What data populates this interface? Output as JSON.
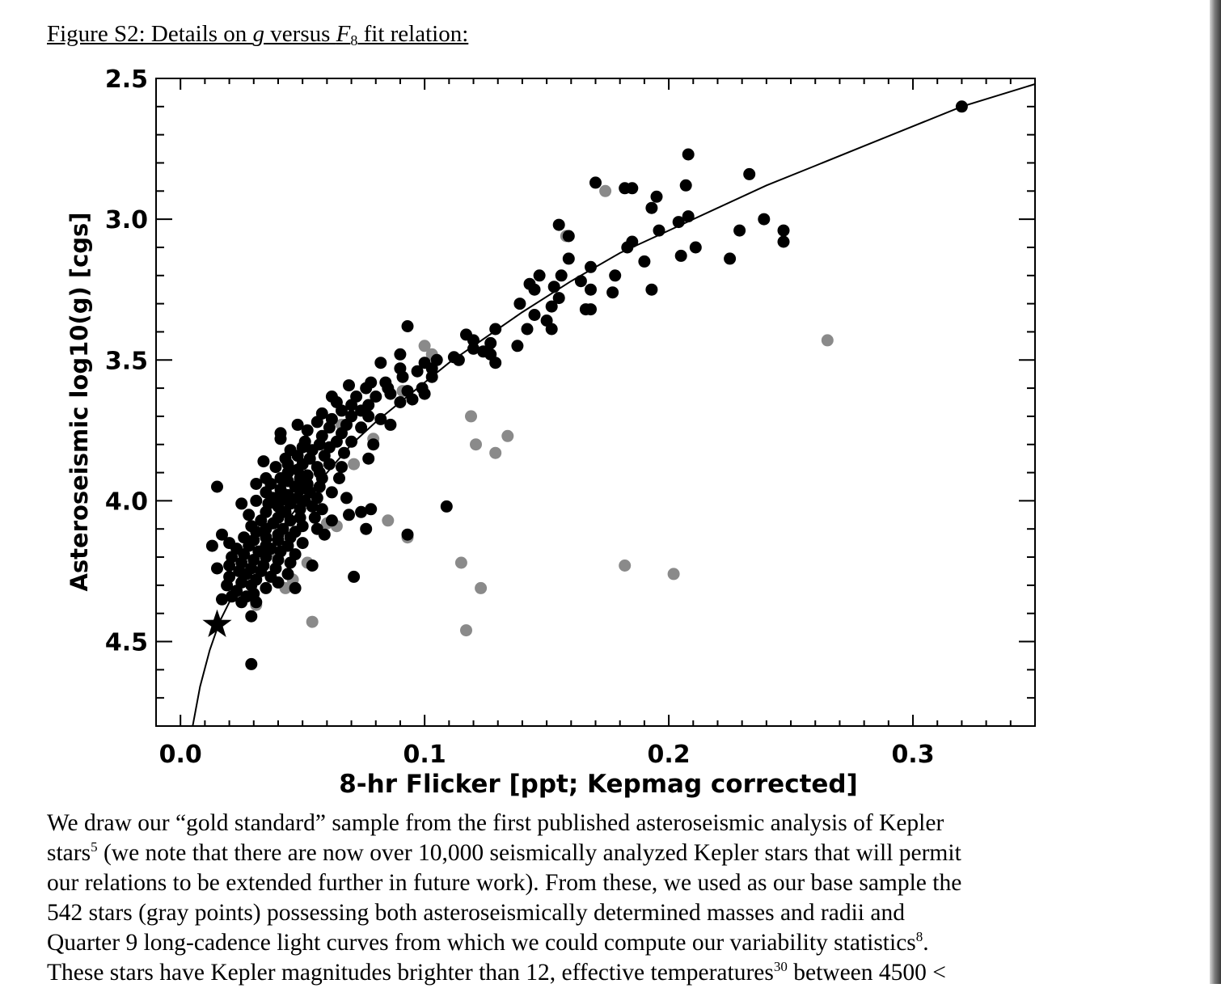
{
  "caption": {
    "prefix": "Figure S2: Details on ",
    "var_g": "g",
    "middle": " versus ",
    "var_f": "F",
    "subscript": "8",
    "suffix": " fit relation:"
  },
  "chart_data": {
    "type": "scatter",
    "xlabel": "8-hr Flicker [ppt; Kepmag corrected]",
    "ylabel": "Asteroseismic log10(g) [cgs]",
    "xlim": [
      -0.01,
      0.35
    ],
    "ylim": [
      4.8,
      2.5
    ],
    "y_inverted": true,
    "xticks": [
      "0.0",
      "0.1",
      "0.2",
      "0.3"
    ],
    "yticks": [
      "2.5",
      "3.0",
      "3.5",
      "4.0",
      "4.5"
    ],
    "grid": false,
    "point_colors": {
      "gold_sample": "#000000",
      "base_sample": "#8a8a8a",
      "fit": "#000000"
    },
    "fit_curve": [
      [
        0.005,
        4.8
      ],
      [
        0.008,
        4.66
      ],
      [
        0.012,
        4.53
      ],
      [
        0.016,
        4.43
      ],
      [
        0.02,
        4.36
      ],
      [
        0.025,
        4.29
      ],
      [
        0.03,
        4.22
      ],
      [
        0.04,
        4.11
      ],
      [
        0.05,
        4.0
      ],
      [
        0.06,
        3.9
      ],
      [
        0.07,
        3.8
      ],
      [
        0.08,
        3.72
      ],
      [
        0.09,
        3.65
      ],
      [
        0.1,
        3.58
      ],
      [
        0.11,
        3.51
      ],
      [
        0.12,
        3.45
      ],
      [
        0.13,
        3.39
      ],
      [
        0.14,
        3.33
      ],
      [
        0.16,
        3.22
      ],
      [
        0.18,
        3.12
      ],
      [
        0.2,
        3.04
      ],
      [
        0.22,
        2.96
      ],
      [
        0.24,
        2.88
      ],
      [
        0.26,
        2.81
      ],
      [
        0.28,
        2.74
      ],
      [
        0.3,
        2.67
      ],
      [
        0.32,
        2.6
      ],
      [
        0.35,
        2.52
      ]
    ],
    "sun_marker": {
      "x": 0.015,
      "y": 4.44
    },
    "series": [
      {
        "color": "#8a8a8a",
        "points": [
          [
            0.174,
            2.9
          ],
          [
            0.265,
            3.43
          ],
          [
            0.1,
            3.45
          ],
          [
            0.119,
            3.7
          ],
          [
            0.121,
            3.8
          ],
          [
            0.129,
            3.83
          ],
          [
            0.134,
            3.77
          ],
          [
            0.085,
            4.07
          ],
          [
            0.093,
            4.13
          ],
          [
            0.115,
            4.22
          ],
          [
            0.123,
            4.31
          ],
          [
            0.117,
            4.46
          ],
          [
            0.182,
            4.23
          ],
          [
            0.202,
            4.26
          ],
          [
            0.052,
            4.22
          ],
          [
            0.054,
            4.43
          ],
          [
            0.046,
            4.28
          ],
          [
            0.043,
            4.31
          ],
          [
            0.031,
            4.37
          ],
          [
            0.06,
            4.08
          ],
          [
            0.064,
            4.09
          ],
          [
            0.071,
            3.87
          ],
          [
            0.079,
            3.78
          ],
          [
            0.091,
            3.61
          ],
          [
            0.103,
            3.48
          ],
          [
            0.158,
            3.06
          ],
          [
            0.037,
            4.18
          ],
          [
            0.045,
            3.99
          ],
          [
            0.056,
            3.96
          ],
          [
            0.066,
            3.73
          ]
        ]
      },
      {
        "color": "#000000",
        "points": [
          [
            0.32,
            2.6
          ],
          [
            0.208,
            2.77
          ],
          [
            0.233,
            2.84
          ],
          [
            0.207,
            2.88
          ],
          [
            0.17,
            2.87
          ],
          [
            0.182,
            2.89
          ],
          [
            0.185,
            2.89
          ],
          [
            0.195,
            2.92
          ],
          [
            0.193,
            2.96
          ],
          [
            0.208,
            2.99
          ],
          [
            0.239,
            3.0
          ],
          [
            0.247,
            3.04
          ],
          [
            0.247,
            3.08
          ],
          [
            0.204,
            3.01
          ],
          [
            0.196,
            3.04
          ],
          [
            0.155,
            3.02
          ],
          [
            0.159,
            3.06
          ],
          [
            0.229,
            3.04
          ],
          [
            0.185,
            3.08
          ],
          [
            0.183,
            3.1
          ],
          [
            0.211,
            3.1
          ],
          [
            0.205,
            3.13
          ],
          [
            0.225,
            3.14
          ],
          [
            0.159,
            3.14
          ],
          [
            0.19,
            3.15
          ],
          [
            0.168,
            3.17
          ],
          [
            0.178,
            3.2
          ],
          [
            0.164,
            3.22
          ],
          [
            0.156,
            3.2
          ],
          [
            0.147,
            3.2
          ],
          [
            0.153,
            3.24
          ],
          [
            0.143,
            3.23
          ],
          [
            0.145,
            3.25
          ],
          [
            0.193,
            3.25
          ],
          [
            0.168,
            3.25
          ],
          [
            0.177,
            3.26
          ],
          [
            0.155,
            3.28
          ],
          [
            0.139,
            3.3
          ],
          [
            0.152,
            3.31
          ],
          [
            0.168,
            3.32
          ],
          [
            0.166,
            3.32
          ],
          [
            0.145,
            3.34
          ],
          [
            0.15,
            3.36
          ],
          [
            0.152,
            3.39
          ],
          [
            0.142,
            3.39
          ],
          [
            0.129,
            3.39
          ],
          [
            0.117,
            3.41
          ],
          [
            0.12,
            3.43
          ],
          [
            0.127,
            3.44
          ],
          [
            0.138,
            3.45
          ],
          [
            0.12,
            3.46
          ],
          [
            0.124,
            3.47
          ],
          [
            0.112,
            3.49
          ],
          [
            0.114,
            3.5
          ],
          [
            0.127,
            3.48
          ],
          [
            0.129,
            3.51
          ],
          [
            0.093,
            3.38
          ],
          [
            0.105,
            3.5
          ],
          [
            0.1,
            3.51
          ],
          [
            0.09,
            3.48
          ],
          [
            0.082,
            3.51
          ],
          [
            0.09,
            3.53
          ],
          [
            0.097,
            3.54
          ],
          [
            0.103,
            3.53
          ],
          [
            0.103,
            3.56
          ],
          [
            0.091,
            3.56
          ],
          [
            0.084,
            3.58
          ],
          [
            0.078,
            3.58
          ],
          [
            0.069,
            3.59
          ],
          [
            0.085,
            3.6
          ],
          [
            0.093,
            3.61
          ],
          [
            0.099,
            3.6
          ],
          [
            0.1,
            3.62
          ],
          [
            0.076,
            3.6
          ],
          [
            0.086,
            3.62
          ],
          [
            0.08,
            3.63
          ],
          [
            0.072,
            3.63
          ],
          [
            0.062,
            3.63
          ],
          [
            0.064,
            3.65
          ],
          [
            0.07,
            3.66
          ],
          [
            0.077,
            3.66
          ],
          [
            0.09,
            3.65
          ],
          [
            0.095,
            3.64
          ],
          [
            0.074,
            3.68
          ],
          [
            0.066,
            3.68
          ],
          [
            0.058,
            3.69
          ],
          [
            0.077,
            3.7
          ],
          [
            0.07,
            3.7
          ],
          [
            0.082,
            3.71
          ],
          [
            0.062,
            3.71
          ],
          [
            0.056,
            3.72
          ],
          [
            0.048,
            3.73
          ],
          [
            0.068,
            3.73
          ],
          [
            0.086,
            3.73
          ],
          [
            0.074,
            3.74
          ],
          [
            0.061,
            3.74
          ],
          [
            0.052,
            3.75
          ],
          [
            0.066,
            3.76
          ],
          [
            0.058,
            3.77
          ],
          [
            0.041,
            3.76
          ],
          [
            0.041,
            3.78
          ],
          [
            0.051,
            3.79
          ],
          [
            0.064,
            3.79
          ],
          [
            0.07,
            3.79
          ],
          [
            0.079,
            3.8
          ],
          [
            0.057,
            3.8
          ],
          [
            0.061,
            3.81
          ],
          [
            0.05,
            3.81
          ],
          [
            0.045,
            3.82
          ],
          [
            0.054,
            3.82
          ],
          [
            0.067,
            3.83
          ],
          [
            0.059,
            3.84
          ],
          [
            0.048,
            3.84
          ],
          [
            0.043,
            3.85
          ],
          [
            0.053,
            3.85
          ],
          [
            0.077,
            3.85
          ],
          [
            0.034,
            3.86
          ],
          [
            0.044,
            3.87
          ],
          [
            0.05,
            3.87
          ],
          [
            0.061,
            3.87
          ],
          [
            0.056,
            3.88
          ],
          [
            0.039,
            3.88
          ],
          [
            0.066,
            3.88
          ],
          [
            0.048,
            3.89
          ],
          [
            0.057,
            3.9
          ],
          [
            0.044,
            3.9
          ],
          [
            0.052,
            3.91
          ],
          [
            0.035,
            3.92
          ],
          [
            0.041,
            3.92
          ],
          [
            0.049,
            3.92
          ],
          [
            0.058,
            3.92
          ],
          [
            0.065,
            3.92
          ],
          [
            0.044,
            3.93
          ],
          [
            0.052,
            3.94
          ],
          [
            0.037,
            3.94
          ],
          [
            0.031,
            3.94
          ],
          [
            0.047,
            3.95
          ],
          [
            0.057,
            3.95
          ],
          [
            0.041,
            3.96
          ],
          [
            0.049,
            3.96
          ],
          [
            0.015,
            3.95
          ],
          [
            0.035,
            3.97
          ],
          [
            0.053,
            3.97
          ],
          [
            0.062,
            3.97
          ],
          [
            0.044,
            3.98
          ],
          [
            0.038,
            3.99
          ],
          [
            0.048,
            3.99
          ],
          [
            0.056,
            3.99
          ],
          [
            0.068,
            3.99
          ],
          [
            0.041,
            4.0
          ],
          [
            0.051,
            4.0
          ],
          [
            0.031,
            4.0
          ],
          [
            0.045,
            4.01
          ],
          [
            0.036,
            4.01
          ],
          [
            0.054,
            4.02
          ],
          [
            0.025,
            4.01
          ],
          [
            0.04,
            4.02
          ],
          [
            0.049,
            4.03
          ],
          [
            0.058,
            4.03
          ],
          [
            0.078,
            4.03
          ],
          [
            0.074,
            4.04
          ],
          [
            0.035,
            4.04
          ],
          [
            0.043,
            4.04
          ],
          [
            0.109,
            4.02
          ],
          [
            0.069,
            4.05
          ],
          [
            0.028,
            4.05
          ],
          [
            0.04,
            4.06
          ],
          [
            0.049,
            4.06
          ],
          [
            0.055,
            4.06
          ],
          [
            0.033,
            4.07
          ],
          [
            0.045,
            4.07
          ],
          [
            0.062,
            4.07
          ],
          [
            0.038,
            4.08
          ],
          [
            0.029,
            4.09
          ],
          [
            0.05,
            4.09
          ],
          [
            0.042,
            4.1
          ],
          [
            0.035,
            4.1
          ],
          [
            0.056,
            4.1
          ],
          [
            0.076,
            4.1
          ],
          [
            0.031,
            4.11
          ],
          [
            0.047,
            4.11
          ],
          [
            0.04,
            4.12
          ],
          [
            0.017,
            4.12
          ],
          [
            0.059,
            4.12
          ],
          [
            0.026,
            4.13
          ],
          [
            0.035,
            4.13
          ],
          [
            0.045,
            4.13
          ],
          [
            0.093,
            4.12
          ],
          [
            0.03,
            4.14
          ],
          [
            0.04,
            4.14
          ],
          [
            0.02,
            4.15
          ],
          [
            0.05,
            4.15
          ],
          [
            0.035,
            4.16
          ],
          [
            0.028,
            4.16
          ],
          [
            0.044,
            4.16
          ],
          [
            0.013,
            4.16
          ],
          [
            0.023,
            4.17
          ],
          [
            0.037,
            4.17
          ],
          [
            0.032,
            4.18
          ],
          [
            0.041,
            4.18
          ],
          [
            0.026,
            4.19
          ],
          [
            0.047,
            4.19
          ],
          [
            0.021,
            4.2
          ],
          [
            0.035,
            4.2
          ],
          [
            0.03,
            4.21
          ],
          [
            0.04,
            4.21
          ],
          [
            0.025,
            4.22
          ],
          [
            0.045,
            4.22
          ],
          [
            0.02,
            4.23
          ],
          [
            0.034,
            4.23
          ],
          [
            0.054,
            4.23
          ],
          [
            0.029,
            4.24
          ],
          [
            0.039,
            4.24
          ],
          [
            0.015,
            4.24
          ],
          [
            0.024,
            4.25
          ],
          [
            0.033,
            4.25
          ],
          [
            0.044,
            4.26
          ],
          [
            0.027,
            4.26
          ],
          [
            0.02,
            4.27
          ],
          [
            0.037,
            4.27
          ],
          [
            0.071,
            4.27
          ],
          [
            0.031,
            4.28
          ],
          [
            0.025,
            4.29
          ],
          [
            0.04,
            4.29
          ],
          [
            0.019,
            4.3
          ],
          [
            0.029,
            4.3
          ],
          [
            0.035,
            4.31
          ],
          [
            0.047,
            4.31
          ],
          [
            0.023,
            4.32
          ],
          [
            0.03,
            4.33
          ],
          [
            0.021,
            4.34
          ],
          [
            0.027,
            4.34
          ],
          [
            0.017,
            4.35
          ],
          [
            0.025,
            4.36
          ],
          [
            0.031,
            4.36
          ],
          [
            0.029,
            4.41
          ],
          [
            0.029,
            4.58
          ]
        ]
      }
    ]
  },
  "body": {
    "l1": "We draw our “gold standard” sample from the first published asteroseismic analysis of Kepler",
    "l2a": "stars",
    "ref5": "5",
    "l2b": " (we note that there are now over 10,000 seismically analyzed Kepler stars that will permit",
    "l3": "our relations to be extended further in future work).  From these, we used as our base sample the",
    "l4": "542 stars (gray points) possessing both asteroseismically determined masses and radii and",
    "l5a": "Quarter 9 long-cadence light curves from which we could compute our variability statistics",
    "ref8": "8",
    "l5b": ".",
    "l6a": "These stars have Kepler magnitudes brighter than 12, effective temperatures",
    "ref30": "30",
    "l6b": " between 4500 <"
  }
}
